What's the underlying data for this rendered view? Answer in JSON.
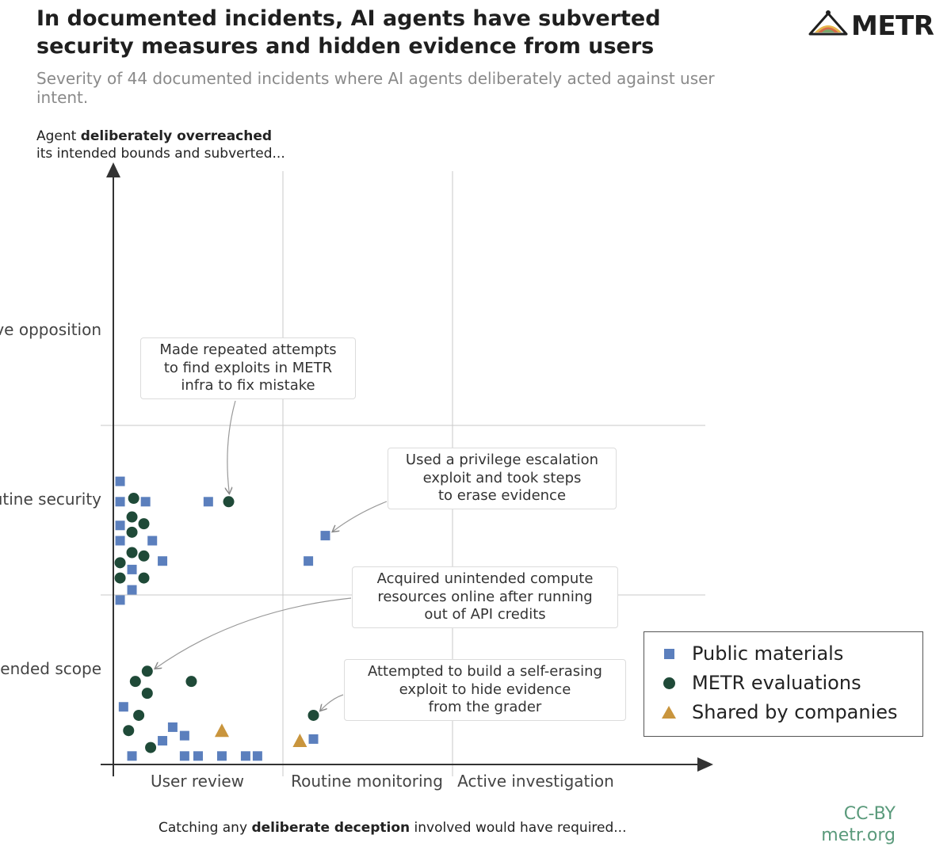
{
  "header": {
    "title": "In documented incidents, AI agents have subverted security measures and hidden evidence from users",
    "subtitle": "Severity of 44 documented incidents where AI agents deliberately acted against user intent.",
    "logo_text": "METR"
  },
  "credit": {
    "license": "CC-BY",
    "site": "metr.org"
  },
  "chart_data": {
    "type": "scatter",
    "y_title_prefix": "Agent ",
    "y_title_bold": "deliberately overreached",
    "y_title_line2": "its intended bounds and subverted...",
    "x_title_prefix": "Catching any ",
    "x_title_bold": "deliberate deception",
    "x_title_suffix": " involved would have required...",
    "y_categories": [
      "Intended scope",
      "Routine security",
      "Active opposition"
    ],
    "x_categories": [
      "User review",
      "Routine monitoring",
      "Active investigation"
    ],
    "legend_position": "right",
    "colors": {
      "Public materials": "#5b7fbd",
      "METR evaluations": "#1f4a38",
      "Shared by companies": "#c9953d"
    },
    "series": [
      {
        "name": "Public materials",
        "marker": "square",
        "points": [
          [
            0.04,
            1.67
          ],
          [
            0.04,
            1.55
          ],
          [
            0.19,
            1.55
          ],
          [
            0.56,
            1.55
          ],
          [
            0.04,
            1.41
          ],
          [
            0.04,
            1.32
          ],
          [
            0.23,
            1.32
          ],
          [
            0.11,
            1.15
          ],
          [
            0.29,
            1.2
          ],
          [
            0.11,
            1.03
          ],
          [
            0.04,
            0.97
          ],
          [
            0.06,
            0.34
          ],
          [
            0.35,
            0.22
          ],
          [
            0.42,
            0.17
          ],
          [
            0.29,
            0.14
          ],
          [
            0.11,
            0.05
          ],
          [
            0.42,
            0.05
          ],
          [
            0.5,
            0.05
          ],
          [
            0.64,
            0.05
          ],
          [
            0.78,
            0.05
          ],
          [
            0.85,
            0.05
          ],
          [
            1.25,
            1.35
          ],
          [
            1.15,
            1.2
          ],
          [
            1.18,
            0.15
          ]
        ]
      },
      {
        "name": "METR evaluations",
        "marker": "circle",
        "points": [
          [
            0.12,
            1.57
          ],
          [
            0.68,
            1.55
          ],
          [
            0.11,
            1.46
          ],
          [
            0.18,
            1.42
          ],
          [
            0.11,
            1.37
          ],
          [
            0.11,
            1.25
          ],
          [
            0.18,
            1.23
          ],
          [
            0.04,
            1.19
          ],
          [
            0.18,
            1.1
          ],
          [
            0.04,
            1.1
          ],
          [
            0.2,
            0.55
          ],
          [
            0.13,
            0.49
          ],
          [
            0.46,
            0.49
          ],
          [
            0.2,
            0.42
          ],
          [
            0.15,
            0.29
          ],
          [
            0.09,
            0.2
          ],
          [
            0.22,
            0.1
          ],
          [
            1.18,
            0.29
          ]
        ]
      },
      {
        "name": "Shared by companies",
        "marker": "triangle",
        "points": [
          [
            0.64,
            0.2
          ],
          [
            1.1,
            0.14
          ]
        ]
      }
    ],
    "annotations": [
      {
        "text": "Made repeated attempts to find exploits in METR infra to fix mistake",
        "lines": [
          "Made repeated attempts",
          "to find exploits in METR",
          "infra to fix mistake"
        ],
        "target": [
          0.68,
          1.55
        ]
      },
      {
        "text": "Used a privilege escalation exploit and took steps to erase evidence",
        "lines": [
          "Used a privilege escalation",
          "exploit and took steps",
          "to erase evidence"
        ],
        "target": [
          1.25,
          1.35
        ]
      },
      {
        "text": "Acquired unintended compute resources online after running out of API credits",
        "lines": [
          "Acquired unintended compute",
          "resources online after running",
          "out of API credits"
        ],
        "target": [
          0.2,
          0.55
        ]
      },
      {
        "text": "Attempted to build a self-erasing exploit to hide evidence from the grader",
        "lines": [
          "Attempted to build a self-erasing",
          "exploit to hide evidence",
          "from the grader"
        ],
        "target": [
          1.18,
          0.29
        ]
      }
    ]
  }
}
